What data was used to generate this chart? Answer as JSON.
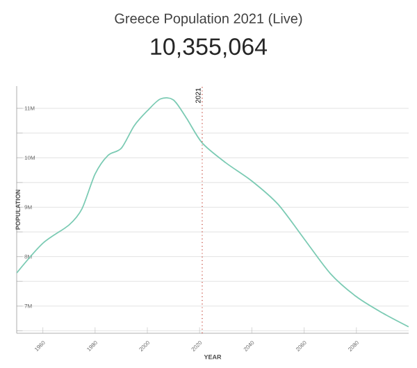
{
  "chart_data": {
    "type": "line",
    "title": "Greece Population 2021 (Live)",
    "subtitle": "10,355,064",
    "xlabel": "YEAR",
    "ylabel": "POPULATION",
    "x": [
      1950,
      1960,
      1970,
      1975,
      1980,
      1985,
      1990,
      1995,
      2000,
      2005,
      2010,
      2015,
      2021,
      2030,
      2040,
      2050,
      2060,
      2070,
      2080,
      2090,
      2100
    ],
    "series": [
      {
        "color": "#7ccbb4",
        "values": [
          7.67,
          8.27,
          8.64,
          8.97,
          9.67,
          10.05,
          10.19,
          10.65,
          10.95,
          11.19,
          11.17,
          10.8,
          10.3,
          9.9,
          9.53,
          9.06,
          8.36,
          7.66,
          7.19,
          6.86,
          6.58
        ]
      }
    ],
    "xlim": [
      1950,
      2100
    ],
    "xticks": [
      1960,
      1980,
      2000,
      2020,
      2040,
      2060,
      2080
    ],
    "ylim": [
      6.45,
      11.45
    ],
    "yticks": [
      {
        "value": 6.5,
        "label": null
      },
      {
        "value": 7,
        "label": "7M"
      },
      {
        "value": 7.5,
        "label": null
      },
      {
        "value": 8,
        "label": "8M"
      },
      {
        "value": 8.5,
        "label": null
      },
      {
        "value": 9,
        "label": "9M"
      },
      {
        "value": 9.5,
        "label": null
      },
      {
        "value": 10,
        "label": "10M"
      },
      {
        "value": 10.5,
        "label": null
      },
      {
        "value": 11,
        "label": "11M"
      }
    ],
    "ref_lines": [
      {
        "axis": "x",
        "value": 2021,
        "label": "2021",
        "color": "#c0392b",
        "line_style": "dotted"
      }
    ],
    "grid": "y",
    "marker": "none",
    "line_style": "solid"
  }
}
